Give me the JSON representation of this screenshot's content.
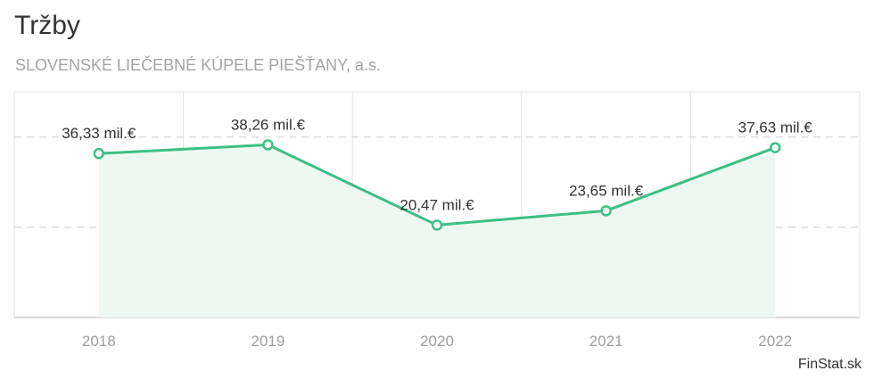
{
  "header": {
    "title": "Tržby",
    "subtitle": "SLOVENSKÉ LIEČEBNÉ KÚPELE PIEŠŤANY, a.s."
  },
  "brand": "FinStat.sk",
  "colors": {
    "line": "#3dbf85",
    "area": "#eef8f3",
    "grid": "#e3e3e3",
    "axis": "#cfcfcf"
  },
  "chart_data": {
    "type": "area",
    "categories": [
      "2018",
      "2019",
      "2020",
      "2021",
      "2022"
    ],
    "series": [
      {
        "values": [
          36.33,
          38.26,
          20.47,
          23.65,
          37.63
        ],
        "labels": [
          "36,33 mil.€",
          "38,26 mil.€",
          "20,47 mil.€",
          "23,65 mil.€",
          "37,63 mil.€"
        ]
      }
    ],
    "title": "Tržby",
    "subtitle": "SLOVENSKÉ LIEČEBNÉ KÚPELE PIEŠŤANY, a.s.",
    "xlabel": "",
    "ylabel": "",
    "ylim": [
      0,
      50
    ],
    "yticks": [
      20,
      40
    ],
    "grid": true,
    "legend": "none"
  }
}
